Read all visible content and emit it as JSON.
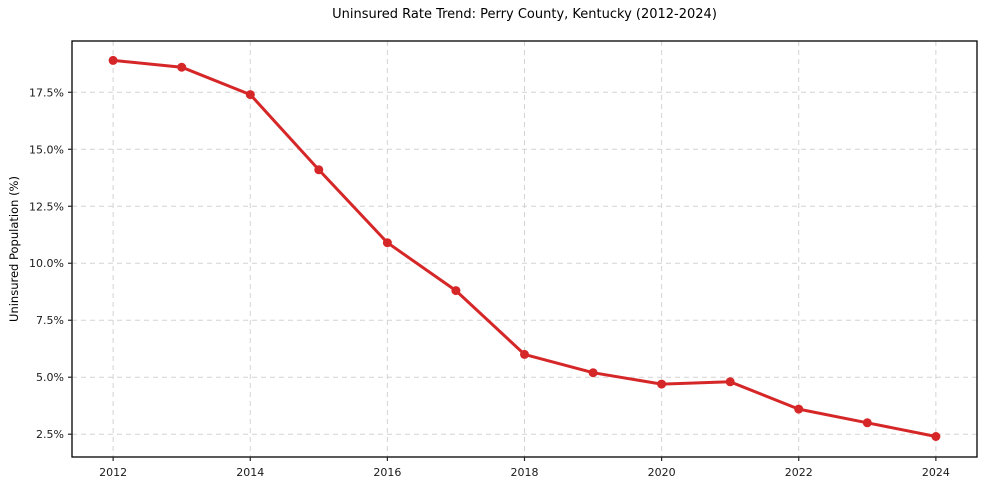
{
  "page": {
    "background_color": "#ffffff"
  },
  "chart_data": {
    "type": "line",
    "title": "Uninsured Rate Trend: Perry County, Kentucky (2012-2024)",
    "xlabel": "",
    "ylabel": "Uninsured Population (%)",
    "x": [
      2012,
      2013,
      2014,
      2015,
      2016,
      2017,
      2018,
      2019,
      2020,
      2021,
      2022,
      2023,
      2024
    ],
    "values": [
      18.9,
      18.6,
      17.4,
      14.1,
      10.9,
      8.8,
      6.0,
      5.2,
      4.7,
      4.8,
      3.6,
      3.0,
      2.4
    ],
    "xlim": [
      2011.4,
      2024.6
    ],
    "ylim": [
      1.5,
      19.75
    ],
    "x_ticks": [
      2012,
      2014,
      2016,
      2018,
      2020,
      2022,
      2024
    ],
    "x_tick_labels": [
      "2012",
      "2014",
      "2016",
      "2018",
      "2020",
      "2022",
      "2024"
    ],
    "y_ticks": [
      2.5,
      5.0,
      7.5,
      10.0,
      12.5,
      15.0,
      17.5
    ],
    "y_tick_labels": [
      "2.5%",
      "5.0%",
      "7.5%",
      "10.0%",
      "12.5%",
      "15.0%",
      "17.5%"
    ],
    "grid": true,
    "grid_style": "dashed",
    "legend": false,
    "line_color": "#d62728",
    "marker": "circle",
    "grid_color": "#d3d3d3",
    "spine_color": "#000000",
    "tick_color": "#262626"
  }
}
